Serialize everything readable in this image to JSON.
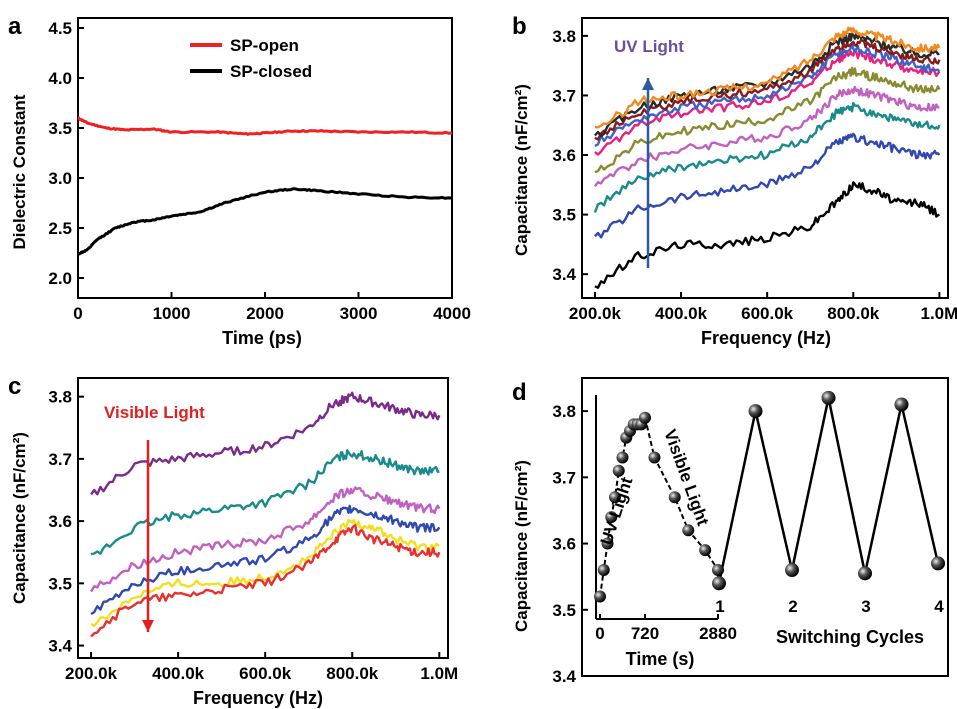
{
  "chart_data": [
    {
      "panel": "a",
      "type": "line",
      "xlabel": "Time (ps)",
      "ylabel": "Dielectric Constant",
      "xlim": [
        0,
        4000
      ],
      "ylim": [
        1.8,
        4.6
      ],
      "xticks": [
        0,
        1000,
        2000,
        3000,
        4000
      ],
      "xtick_labels": [
        "0",
        "1000",
        "2000",
        "3000",
        "4000"
      ],
      "yticks": [
        2.0,
        2.5,
        3.0,
        3.5,
        4.0,
        4.5
      ],
      "ytick_labels": [
        "2.0",
        "2.5",
        "3.0",
        "3.5",
        "4.0",
        "4.5"
      ],
      "legend_position": "top-center",
      "series": [
        {
          "name": "SP-open",
          "color": "#ee2222",
          "x": [
            0,
            100,
            300,
            500,
            800,
            1000,
            1500,
            1800,
            2000,
            2300,
            2600,
            3000,
            3500,
            4000
          ],
          "y": [
            3.6,
            3.55,
            3.5,
            3.48,
            3.49,
            3.46,
            3.46,
            3.44,
            3.45,
            3.47,
            3.47,
            3.46,
            3.46,
            3.45
          ]
        },
        {
          "name": "SP-closed",
          "color": "#000000",
          "x": [
            0,
            100,
            200,
            400,
            600,
            800,
            1000,
            1300,
            1600,
            2000,
            2300,
            2600,
            3000,
            3500,
            4000
          ],
          "y": [
            2.24,
            2.28,
            2.38,
            2.5,
            2.56,
            2.58,
            2.62,
            2.66,
            2.76,
            2.86,
            2.89,
            2.87,
            2.84,
            2.81,
            2.8
          ]
        }
      ]
    },
    {
      "panel": "b",
      "type": "line",
      "xlabel": "Frequency (Hz)",
      "ylabel": "Capacitance (nF/cm²)",
      "xlim": [
        170000,
        1020000
      ],
      "ylim": [
        3.36,
        3.83
      ],
      "xticks": [
        200000,
        400000,
        600000,
        800000,
        1000000
      ],
      "xtick_labels": [
        "200.0k",
        "400.0k",
        "600.0k",
        "800.0k",
        "1.0M"
      ],
      "yticks": [
        3.4,
        3.5,
        3.6,
        3.7,
        3.8
      ],
      "ytick_labels": [
        "3.4",
        "3.5",
        "3.6",
        "3.7",
        "3.8"
      ],
      "annotation": "UV Light",
      "annotation_color": "#6a4fa0",
      "arrow_color": "#2c5aa0",
      "arrow_direction": "up",
      "x": [
        200000,
        300000,
        400000,
        500000,
        600000,
        700000,
        760000,
        800000,
        850000,
        900000,
        950000,
        1000000
      ],
      "series": [
        {
          "color": "#000000",
          "values": [
            3.38,
            3.43,
            3.45,
            3.45,
            3.46,
            3.48,
            3.52,
            3.55,
            3.54,
            3.52,
            3.52,
            3.5
          ]
        },
        {
          "color": "#3048b0",
          "values": [
            3.46,
            3.51,
            3.53,
            3.54,
            3.55,
            3.58,
            3.62,
            3.63,
            3.62,
            3.61,
            3.6,
            3.6
          ]
        },
        {
          "color": "#1a8a8a",
          "values": [
            3.51,
            3.56,
            3.58,
            3.59,
            3.6,
            3.63,
            3.67,
            3.68,
            3.67,
            3.66,
            3.65,
            3.65
          ]
        },
        {
          "color": "#c060c0",
          "values": [
            3.55,
            3.59,
            3.61,
            3.62,
            3.63,
            3.66,
            3.7,
            3.71,
            3.7,
            3.69,
            3.68,
            3.68
          ]
        },
        {
          "color": "#8a8a30",
          "values": [
            3.57,
            3.62,
            3.64,
            3.65,
            3.66,
            3.69,
            3.73,
            3.74,
            3.73,
            3.72,
            3.71,
            3.71
          ]
        },
        {
          "color": "#e82080",
          "values": [
            3.6,
            3.65,
            3.67,
            3.68,
            3.69,
            3.72,
            3.76,
            3.77,
            3.76,
            3.75,
            3.74,
            3.74
          ]
        },
        {
          "color": "#4060c8",
          "values": [
            3.62,
            3.66,
            3.68,
            3.69,
            3.7,
            3.73,
            3.77,
            3.78,
            3.77,
            3.76,
            3.75,
            3.74
          ]
        },
        {
          "color": "#8a1a1a",
          "values": [
            3.63,
            3.67,
            3.69,
            3.7,
            3.71,
            3.74,
            3.78,
            3.79,
            3.78,
            3.77,
            3.76,
            3.76
          ]
        },
        {
          "color": "#2a2a2a",
          "values": [
            3.63,
            3.68,
            3.7,
            3.71,
            3.72,
            3.75,
            3.79,
            3.8,
            3.79,
            3.78,
            3.77,
            3.77
          ]
        },
        {
          "color": "#f08a20",
          "values": [
            3.64,
            3.69,
            3.7,
            3.71,
            3.72,
            3.76,
            3.8,
            3.81,
            3.8,
            3.79,
            3.78,
            3.78
          ]
        }
      ]
    },
    {
      "panel": "c",
      "type": "line",
      "xlabel": "Frequency (Hz)",
      "ylabel": "Capacitance (nF/cm²)",
      "xlim": [
        170000,
        1020000
      ],
      "ylim": [
        3.38,
        3.83
      ],
      "xticks": [
        200000,
        400000,
        600000,
        800000,
        1000000
      ],
      "xtick_labels": [
        "200.0k",
        "400.0k",
        "600.0k",
        "800.0k",
        "1.0M"
      ],
      "yticks": [
        3.4,
        3.5,
        3.6,
        3.7,
        3.8
      ],
      "ytick_labels": [
        "3.4",
        "3.5",
        "3.6",
        "3.7",
        "3.8"
      ],
      "annotation": "Visible Light",
      "annotation_color": "#e02020",
      "arrow_color": "#e02020",
      "arrow_direction": "down",
      "x": [
        200000,
        300000,
        400000,
        500000,
        600000,
        700000,
        760000,
        800000,
        850000,
        900000,
        950000,
        1000000
      ],
      "series": [
        {
          "color": "#7a2a8a",
          "values": [
            3.64,
            3.69,
            3.7,
            3.71,
            3.72,
            3.75,
            3.79,
            3.8,
            3.79,
            3.78,
            3.77,
            3.77
          ]
        },
        {
          "color": "#1a8a8a",
          "values": [
            3.54,
            3.59,
            3.61,
            3.62,
            3.63,
            3.66,
            3.7,
            3.71,
            3.7,
            3.69,
            3.68,
            3.68
          ]
        },
        {
          "color": "#c060c0",
          "values": [
            3.49,
            3.53,
            3.55,
            3.56,
            3.57,
            3.6,
            3.64,
            3.65,
            3.64,
            3.63,
            3.62,
            3.62
          ]
        },
        {
          "color": "#3048b0",
          "values": [
            3.45,
            3.5,
            3.52,
            3.53,
            3.54,
            3.57,
            3.61,
            3.62,
            3.61,
            3.6,
            3.59,
            3.59
          ]
        },
        {
          "color": "#f0e020",
          "values": [
            3.43,
            3.48,
            3.5,
            3.5,
            3.51,
            3.54,
            3.58,
            3.6,
            3.59,
            3.57,
            3.56,
            3.56
          ]
        },
        {
          "color": "#e83030",
          "values": [
            3.42,
            3.47,
            3.48,
            3.49,
            3.5,
            3.53,
            3.57,
            3.59,
            3.57,
            3.56,
            3.55,
            3.55
          ]
        }
      ]
    },
    {
      "panel": "d",
      "type": "scatter",
      "xlabel_inset": "Time (s)",
      "xlabel_cycles": "Switching Cycles",
      "ylabel": "Capacitance (nF/cm²)",
      "ylim": [
        3.4,
        3.85
      ],
      "yticks": [
        3.4,
        3.5,
        3.6,
        3.7,
        3.8
      ],
      "ytick_labels": [
        "3.4",
        "3.5",
        "3.6",
        "3.7",
        "3.8"
      ],
      "inset_xlim": [
        0,
        2880
      ],
      "inset_xticks": [
        0,
        720,
        2880
      ],
      "inset_xtick_labels": [
        "0",
        "720",
        "2880"
      ],
      "uv_label": "UV Light",
      "visible_label": "Visible Light",
      "uv_time_s": [
        0,
        60,
        120,
        180,
        240,
        300,
        360,
        420,
        480,
        540,
        600,
        660,
        720
      ],
      "uv_values": [
        3.52,
        3.56,
        3.6,
        3.64,
        3.67,
        3.71,
        3.73,
        3.76,
        3.77,
        3.78,
        3.78,
        3.78,
        3.79
      ],
      "visible_time_s": [
        1000,
        1600,
        2000,
        2500,
        2880
      ],
      "visible_values": [
        3.73,
        3.67,
        3.62,
        3.59,
        3.56
      ],
      "cycle_points": [
        {
          "cycle": "1",
          "value": 3.54,
          "state": "visible"
        },
        {
          "cycle": "",
          "value": 3.8,
          "state": "uv"
        },
        {
          "cycle": "2",
          "value": 3.56,
          "state": "visible"
        },
        {
          "cycle": "",
          "value": 3.82,
          "state": "uv"
        },
        {
          "cycle": "3",
          "value": 3.555,
          "state": "visible"
        },
        {
          "cycle": "",
          "value": 3.81,
          "state": "uv"
        },
        {
          "cycle": "4",
          "value": 3.57,
          "state": "visible"
        }
      ]
    }
  ]
}
